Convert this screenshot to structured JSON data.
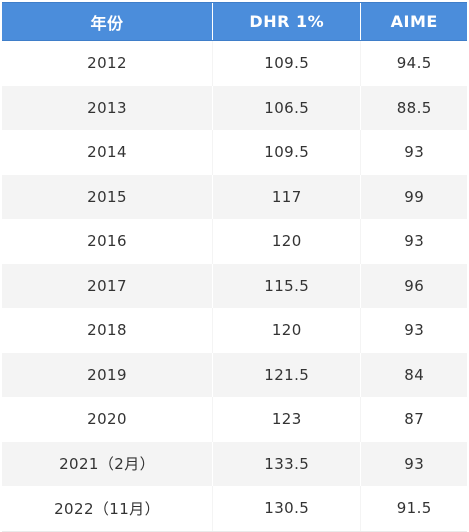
{
  "table": {
    "headers": [
      "年份",
      "DHR 1%",
      "AIME"
    ],
    "rows": [
      [
        "2012",
        "109.5",
        "94.5"
      ],
      [
        "2013",
        "106.5",
        "88.5"
      ],
      [
        "2014",
        "109.5",
        "93"
      ],
      [
        "2015",
        "117",
        "99"
      ],
      [
        "2016",
        "120",
        "93"
      ],
      [
        "2017",
        "115.5",
        "96"
      ],
      [
        "2018",
        "120",
        "93"
      ],
      [
        "2019",
        "121.5",
        "84"
      ],
      [
        "2020",
        "123",
        "87"
      ],
      [
        "2021（2月）",
        "133.5",
        "93"
      ],
      [
        "2022（11月）",
        "130.5",
        "91.5"
      ]
    ]
  },
  "colors": {
    "header_bg": "#4b8ddb",
    "header_text": "#ffffff",
    "stripe": "#f4f4f4",
    "text": "#333333"
  }
}
